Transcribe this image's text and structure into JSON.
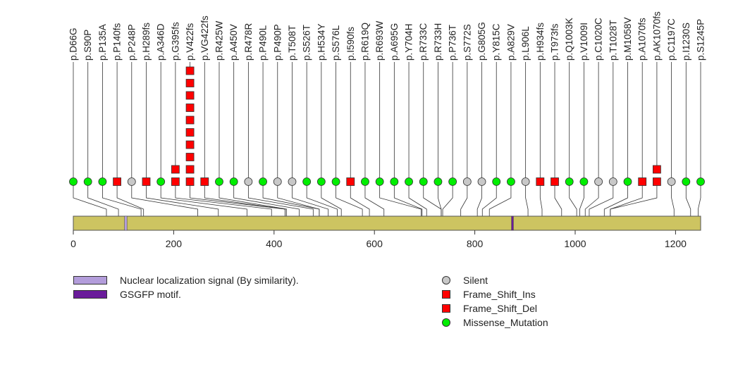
{
  "protein": {
    "length": 1250,
    "color": "#cdc461",
    "axis_ticks": [
      "0",
      "200",
      "400",
      "600",
      "800",
      "1000",
      "1200"
    ],
    "axis_tick_values": [
      0,
      200,
      400,
      600,
      800,
      1000,
      1200
    ],
    "domains": [
      {
        "name": "Nuclear localization signal (By similarity).",
        "start": 102,
        "end": 107,
        "color": "#b39ddb"
      },
      {
        "name": "GSGFP motif.",
        "start": 873,
        "end": 877,
        "color": "#6a1b9a"
      }
    ]
  },
  "mutations": [
    {
      "label": "p.D66G",
      "pos": 66,
      "type": "Missense_Mutation",
      "count": 1
    },
    {
      "label": "p.S90P",
      "pos": 90,
      "type": "Missense_Mutation",
      "count": 1
    },
    {
      "label": "p.P135A",
      "pos": 135,
      "type": "Missense_Mutation",
      "count": 1
    },
    {
      "label": "p.P140fs",
      "pos": 140,
      "type": "Frame_Shift_Del",
      "count": 1
    },
    {
      "label": "p.P248P",
      "pos": 248,
      "type": "Silent",
      "count": 1
    },
    {
      "label": "p.H289fs",
      "pos": 289,
      "type": "Frame_Shift_Del",
      "count": 1
    },
    {
      "label": "p.A346D",
      "pos": 346,
      "type": "Missense_Mutation",
      "count": 1
    },
    {
      "label": "p.G395fs",
      "pos": 395,
      "type": "Frame_Shift_Del",
      "count": 2
    },
    {
      "label": "p.V422fs",
      "pos": 422,
      "type": "Frame_Shift_Del",
      "count": 10
    },
    {
      "label": "p.VG422fs",
      "pos": 422,
      "type": "Frame_Shift_Ins",
      "count": 1
    },
    {
      "label": "p.R425W",
      "pos": 425,
      "type": "Missense_Mutation",
      "count": 1
    },
    {
      "label": "p.A450V",
      "pos": 450,
      "type": "Missense_Mutation",
      "count": 1
    },
    {
      "label": "p.R478R",
      "pos": 478,
      "type": "Silent",
      "count": 1
    },
    {
      "label": "p.P490L",
      "pos": 490,
      "type": "Missense_Mutation",
      "count": 1
    },
    {
      "label": "p.P490P",
      "pos": 490,
      "type": "Silent",
      "count": 1
    },
    {
      "label": "p.T508T",
      "pos": 508,
      "type": "Silent",
      "count": 1
    },
    {
      "label": "p.S526T",
      "pos": 526,
      "type": "Missense_Mutation",
      "count": 1
    },
    {
      "label": "p.H534Y",
      "pos": 534,
      "type": "Missense_Mutation",
      "count": 1
    },
    {
      "label": "p.S576L",
      "pos": 576,
      "type": "Missense_Mutation",
      "count": 1
    },
    {
      "label": "p.I590fs",
      "pos": 590,
      "type": "Frame_Shift_Del",
      "count": 1
    },
    {
      "label": "p.R619Q",
      "pos": 619,
      "type": "Missense_Mutation",
      "count": 1
    },
    {
      "label": "p.R693W",
      "pos": 693,
      "type": "Missense_Mutation",
      "count": 1
    },
    {
      "label": "p.A695G",
      "pos": 695,
      "type": "Missense_Mutation",
      "count": 1
    },
    {
      "label": "p.Y704H",
      "pos": 704,
      "type": "Missense_Mutation",
      "count": 1
    },
    {
      "label": "p.R733C",
      "pos": 733,
      "type": "Missense_Mutation",
      "count": 1
    },
    {
      "label": "p.R733H",
      "pos": 733,
      "type": "Missense_Mutation",
      "count": 1
    },
    {
      "label": "p.P736T",
      "pos": 736,
      "type": "Missense_Mutation",
      "count": 1
    },
    {
      "label": "p.S772S",
      "pos": 772,
      "type": "Silent",
      "count": 1
    },
    {
      "label": "p.G805G",
      "pos": 805,
      "type": "Silent",
      "count": 1
    },
    {
      "label": "p.Y815C",
      "pos": 815,
      "type": "Missense_Mutation",
      "count": 1
    },
    {
      "label": "p.A829V",
      "pos": 829,
      "type": "Missense_Mutation",
      "count": 1
    },
    {
      "label": "p.L906L",
      "pos": 906,
      "type": "Silent",
      "count": 1
    },
    {
      "label": "p.H934fs",
      "pos": 934,
      "type": "Frame_Shift_Del",
      "count": 1
    },
    {
      "label": "p.T973fs",
      "pos": 973,
      "type": "Frame_Shift_Del",
      "count": 1
    },
    {
      "label": "p.Q1003K",
      "pos": 1003,
      "type": "Missense_Mutation",
      "count": 1
    },
    {
      "label": "p.V1009I",
      "pos": 1009,
      "type": "Missense_Mutation",
      "count": 1
    },
    {
      "label": "p.C1020C",
      "pos": 1020,
      "type": "Silent",
      "count": 1
    },
    {
      "label": "p.T1028T",
      "pos": 1028,
      "type": "Silent",
      "count": 1
    },
    {
      "label": "p.M1058V",
      "pos": 1058,
      "type": "Missense_Mutation",
      "count": 1
    },
    {
      "label": "p.A1070fs",
      "pos": 1070,
      "type": "Frame_Shift_Del",
      "count": 1
    },
    {
      "label": "p.AK1070fs",
      "pos": 1070,
      "type": "Frame_Shift_Ins",
      "count": 2
    },
    {
      "label": "p.C1197C",
      "pos": 1197,
      "type": "Silent",
      "count": 1
    },
    {
      "label": "p.I1230S",
      "pos": 1230,
      "type": "Missense_Mutation",
      "count": 1
    },
    {
      "label": "p.S1245P",
      "pos": 1245,
      "type": "Missense_Mutation",
      "count": 1
    }
  ],
  "legend": {
    "domains": [
      {
        "label": "Nuclear localization signal (By similarity).",
        "color": "#b39ddb"
      },
      {
        "label": "GSGFP motif.",
        "color": "#6a1b9a"
      }
    ],
    "symbols": [
      {
        "label": "Silent",
        "shape": "circle",
        "color": "#c8c8c8"
      },
      {
        "label": "Frame_Shift_Ins",
        "shape": "square",
        "color": "#ff0000"
      },
      {
        "label": "Frame_Shift_Del",
        "shape": "square",
        "color": "#ff0000"
      },
      {
        "label": "Missense_Mutation",
        "shape": "circle",
        "color": "#00ee00"
      }
    ]
  },
  "colors": {
    "Silent": "#c8c8c8",
    "Frame_Shift_Ins": "#ff0000",
    "Frame_Shift_Del": "#ff0000",
    "Missense_Mutation": "#00ee00"
  }
}
